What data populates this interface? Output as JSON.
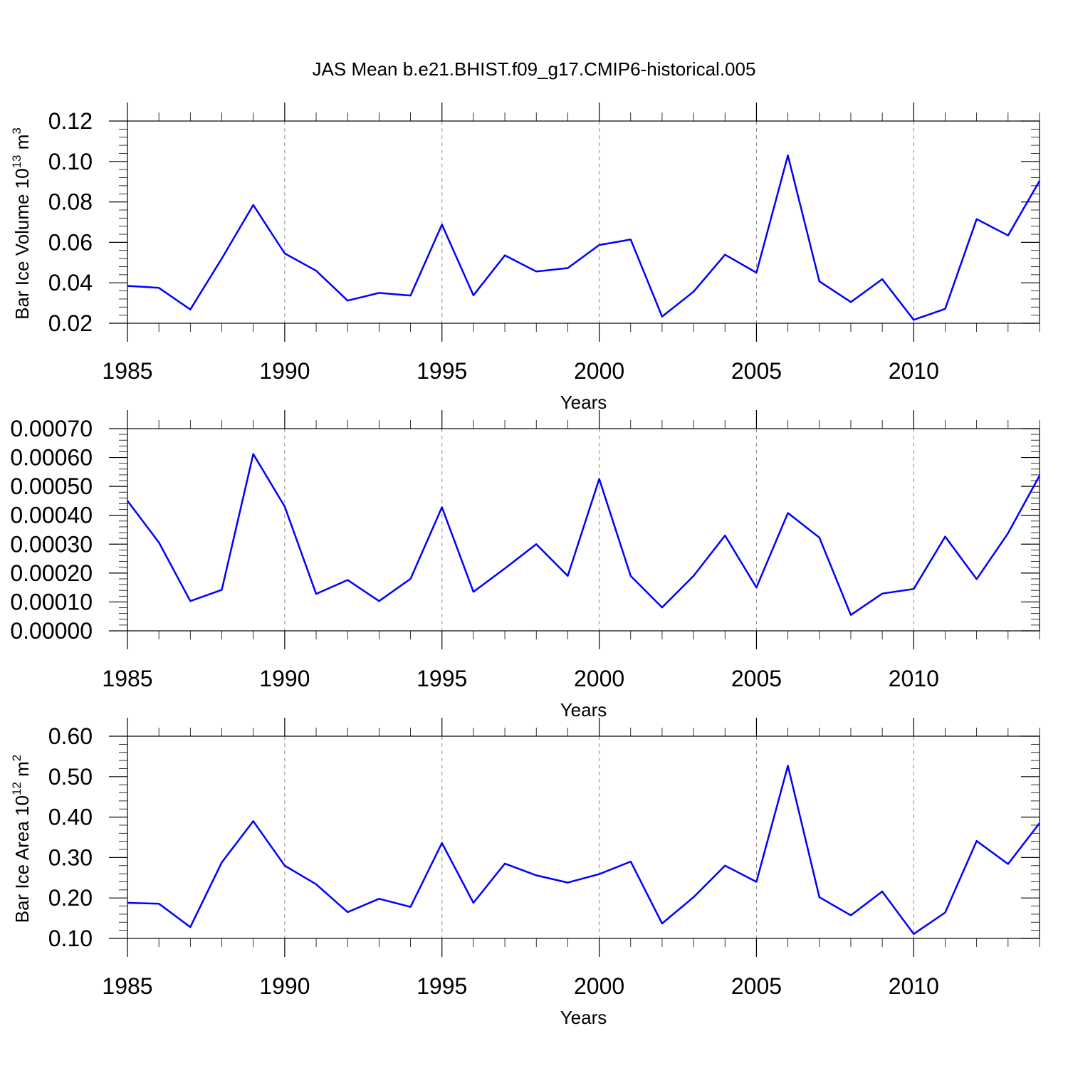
{
  "title": "JAS Mean b.e21.BHIST.f09_g17.CMIP6-historical.005",
  "colors": {
    "line": "#0000ff"
  },
  "chart_data": [
    {
      "type": "line",
      "ylabel": {
        "text": "Bar Ice Volume 10",
        "exp": "13",
        "unit": " m",
        "unit_exp": "3"
      },
      "xlabel": "Years",
      "xlim": [
        1985,
        2014
      ],
      "ylim": [
        0.02,
        0.12
      ],
      "yticks": [
        "0.02",
        "0.04",
        "0.06",
        "0.08",
        "0.10",
        "0.12"
      ],
      "xticks": [
        "1985",
        "1990",
        "1995",
        "2000",
        "2005",
        "2010"
      ],
      "grid": "vertical dashed",
      "x": [
        1985,
        1986,
        1987,
        1988,
        1989,
        1990,
        1991,
        1992,
        1993,
        1994,
        1995,
        1996,
        1997,
        1998,
        1999,
        2000,
        2001,
        2002,
        2003,
        2004,
        2005,
        2006,
        2007,
        2008,
        2009,
        2010,
        2011,
        2012,
        2013,
        2014
      ],
      "values": [
        0.0385,
        0.0375,
        0.0268,
        0.052,
        0.0785,
        0.0545,
        0.046,
        0.0312,
        0.035,
        0.0337,
        0.0688,
        0.0338,
        0.0536,
        0.0456,
        0.0473,
        0.0587,
        0.0614,
        0.0233,
        0.0356,
        0.0539,
        0.045,
        0.103,
        0.0407,
        0.0305,
        0.0418,
        0.0217,
        0.0271,
        0.0715,
        0.0634,
        0.0904
      ]
    },
    {
      "type": "line",
      "ylabel": null,
      "xlabel": "Years",
      "xlim": [
        1985,
        2014
      ],
      "ylim": [
        0.0,
        0.0007
      ],
      "yticks": [
        "0.00000",
        "0.00010",
        "0.00020",
        "0.00030",
        "0.00040",
        "0.00050",
        "0.00060",
        "0.00070"
      ],
      "xticks": [
        "1985",
        "1990",
        "1995",
        "2000",
        "2005",
        "2010"
      ],
      "grid": "vertical dashed",
      "x": [
        1985,
        1986,
        1987,
        1988,
        1989,
        1990,
        1991,
        1992,
        1993,
        1994,
        1995,
        1996,
        1997,
        1998,
        1999,
        2000,
        2001,
        2002,
        2003,
        2004,
        2005,
        2006,
        2007,
        2008,
        2009,
        2010,
        2011,
        2012,
        2013,
        2014
      ],
      "values": [
        0.00045,
        0.000306,
        0.000103,
        0.000142,
        0.000612,
        0.00043,
        0.000128,
        0.000176,
        0.000103,
        0.00018,
        0.000428,
        0.000135,
        0.000216,
        0.0003,
        0.00019,
        0.000526,
        0.00019,
        8.1e-05,
        0.00019,
        0.00033,
        0.00015,
        0.000408,
        0.000323,
        5.5e-05,
        0.000129,
        0.000145,
        0.000326,
        0.000179,
        0.000338,
        0.000537
      ]
    },
    {
      "type": "line",
      "ylabel": {
        "text": "Bar Ice Area 10",
        "exp": "12",
        "unit": " m",
        "unit_exp": "2"
      },
      "xlabel": "Years",
      "xlim": [
        1985,
        2014
      ],
      "ylim": [
        0.1,
        0.6
      ],
      "yticks": [
        "0.10",
        "0.20",
        "0.30",
        "0.40",
        "0.50",
        "0.60"
      ],
      "xticks": [
        "1985",
        "1990",
        "1995",
        "2000",
        "2005",
        "2010"
      ],
      "grid": "vertical dashed",
      "x": [
        1985,
        1986,
        1987,
        1988,
        1989,
        1990,
        1991,
        1992,
        1993,
        1994,
        1995,
        1996,
        1997,
        1998,
        1999,
        2000,
        2001,
        2002,
        2003,
        2004,
        2005,
        2006,
        2007,
        2008,
        2009,
        2010,
        2011,
        2012,
        2013,
        2014
      ],
      "values": [
        0.188,
        0.186,
        0.128,
        0.288,
        0.39,
        0.28,
        0.234,
        0.165,
        0.198,
        0.178,
        0.336,
        0.188,
        0.285,
        0.256,
        0.238,
        0.259,
        0.29,
        0.137,
        0.202,
        0.28,
        0.24,
        0.527,
        0.202,
        0.157,
        0.216,
        0.111,
        0.164,
        0.341,
        0.284,
        0.385
      ]
    }
  ]
}
